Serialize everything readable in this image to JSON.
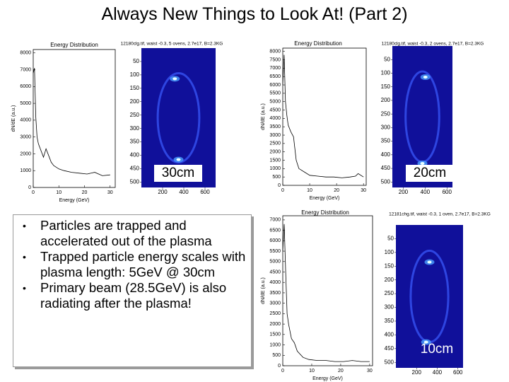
{
  "title": "Always New Things to Look At! (Part 2)",
  "bullets": [
    "Particles are trapped and accelerated out of the plasma",
    "Trapped particle energy scales with plasma length: 5GeV @ 30cm",
    "Primary beam (28.5GeV) is also radiating after the plasma!"
  ],
  "chart_data": [
    {
      "type": "line",
      "title": "Energy Distribution",
      "x_label": "Energy (GeV)",
      "y_label": "dN/dE (a.u.)",
      "color": "#000000",
      "x": [
        0,
        0.5,
        1,
        1.5,
        2,
        3,
        4,
        5,
        6,
        7,
        8,
        10,
        12,
        15,
        18,
        21,
        24,
        27,
        30
      ],
      "values": [
        6800,
        7100,
        4200,
        3000,
        2600,
        2200,
        1800,
        2300,
        1900,
        1500,
        1300,
        1100,
        1000,
        900,
        850,
        800,
        900,
        700,
        750
      ],
      "xlim": [
        0,
        32
      ],
      "ylim": [
        0,
        8200
      ],
      "xticks": [
        0,
        10,
        20,
        30
      ],
      "yticks": [
        0,
        1000,
        2000,
        3000,
        4000,
        5000,
        6000,
        7000,
        8000
      ]
    },
    {
      "type": "line",
      "title": "Energy Distribution",
      "x_label": "Energy (GeV)",
      "y_label": "dN/dE (a.u.)",
      "color": "#000000",
      "x": [
        0,
        0.5,
        1,
        1.5,
        2,
        3,
        4,
        5,
        6,
        8,
        10,
        13,
        16,
        19,
        22,
        25,
        27,
        28,
        30
      ],
      "values": [
        6000,
        7800,
        5000,
        4200,
        3600,
        3200,
        2900,
        1500,
        1000,
        800,
        600,
        550,
        500,
        500,
        450,
        500,
        550,
        700,
        500
      ],
      "xlim": [
        0,
        31
      ],
      "ylim": [
        0,
        8200
      ],
      "xticks": [
        0,
        10,
        20,
        30
      ],
      "yticks": [
        0,
        500,
        1000,
        1500,
        2000,
        2500,
        3000,
        3500,
        4000,
        4500,
        5000,
        5500,
        6000,
        6500,
        7000,
        7500,
        8000
      ]
    },
    {
      "type": "line",
      "title": "Energy Distribution",
      "x_label": "Energy (GeV)",
      "y_label": "dN/dE (a.u.)",
      "color": "#000000",
      "x": [
        0,
        0.5,
        1,
        1.5,
        2,
        3,
        4,
        5,
        7,
        9,
        12,
        15,
        18,
        21,
        24,
        27,
        30
      ],
      "values": [
        5500,
        6800,
        4500,
        2500,
        2000,
        1300,
        1100,
        700,
        400,
        300,
        250,
        250,
        200,
        200,
        250,
        200,
        200
      ],
      "xlim": [
        0,
        31
      ],
      "ylim": [
        0,
        7200
      ],
      "xticks": [
        0,
        10,
        20,
        30
      ],
      "yticks": [
        0,
        500,
        1000,
        1500,
        2000,
        2500,
        3000,
        3500,
        4000,
        4500,
        5000,
        5500,
        6000,
        6500,
        7000
      ]
    }
  ],
  "images": [
    {
      "caption": "12180clg.tif, waist -0.3, 5 ovens, 2.7e17, B=2.3KG",
      "label": "30cm",
      "xlim": [
        0,
        700
      ],
      "ylim": [
        0,
        520
      ],
      "xticks": [
        200,
        400,
        600
      ],
      "yticks": [
        50,
        100,
        150,
        200,
        250,
        300,
        350,
        400,
        450,
        500
      ]
    },
    {
      "caption": "12180clg.tif, waist -0.3, 2 ovens, 2.7e17, B=2.3KG",
      "label": "20cm",
      "xlim": [
        100,
        650
      ],
      "ylim": [
        0,
        520
      ],
      "xticks": [
        200,
        400,
        600
      ],
      "yticks": [
        50,
        100,
        150,
        200,
        250,
        300,
        350,
        400,
        450,
        500
      ]
    },
    {
      "caption": "12181chg.tif, waist -0.3, 1 oven, 2.7e17, B=2.3KG",
      "label": "10cm",
      "xlim": [
        0,
        650
      ],
      "ylim": [
        0,
        520
      ],
      "xticks": [
        200,
        400,
        600
      ],
      "yticks": [
        50,
        100,
        150,
        200,
        250,
        300,
        350,
        400,
        450,
        500
      ]
    }
  ]
}
